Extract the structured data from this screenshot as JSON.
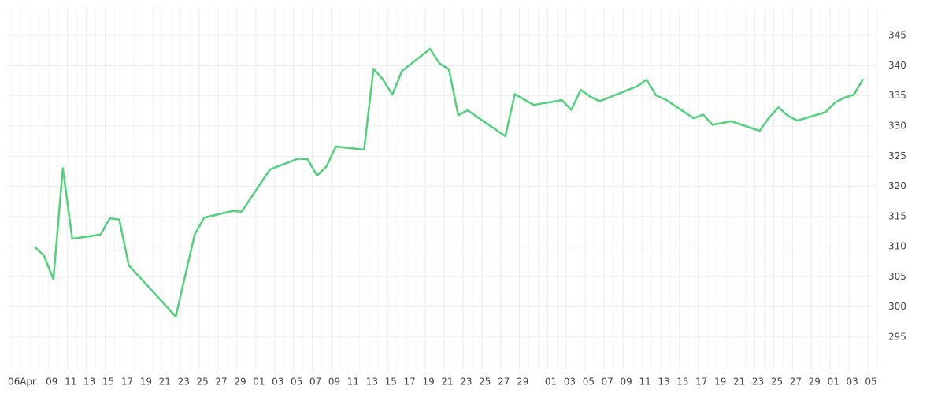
{
  "chart_data": {
    "type": "line",
    "x": [
      "04-07",
      "04-08",
      "04-09",
      "04-10",
      "04-11",
      "04-14",
      "04-15",
      "04-16",
      "04-17",
      "04-22",
      "04-24",
      "04-25",
      "04-28",
      "04-29",
      "05-02",
      "05-05",
      "05-06",
      "05-07",
      "05-08",
      "05-09",
      "05-12",
      "05-13",
      "05-14",
      "05-15",
      "05-16",
      "05-19",
      "05-20",
      "05-21",
      "05-22",
      "05-23",
      "05-27",
      "05-28",
      "05-30",
      "06-02",
      "06-03",
      "06-04",
      "06-05",
      "06-06",
      "06-10",
      "06-11",
      "06-12",
      "06-13",
      "06-16",
      "06-17",
      "06-18",
      "06-20",
      "06-23",
      "06-24",
      "06-25",
      "06-26",
      "06-27",
      "06-30",
      "07-01",
      "07-02",
      "07-03",
      "07-04"
    ],
    "series": [
      {
        "color": "#52d17c",
        "values": [
          310.0,
          308.5,
          304.6,
          323.0,
          311.3,
          312.0,
          314.7,
          314.5,
          306.9,
          298.4,
          312.0,
          314.8,
          315.9,
          315.8,
          322.8,
          324.6,
          324.5,
          321.8,
          323.3,
          326.6,
          326.1,
          339.5,
          337.7,
          335.2,
          339.1,
          342.8,
          340.4,
          339.4,
          331.8,
          332.6,
          328.3,
          335.3,
          333.5,
          334.3,
          332.7,
          336.0,
          334.9,
          334.1,
          336.6,
          337.7,
          335.1,
          334.4,
          331.3,
          331.9,
          330.2,
          330.8,
          329.2,
          331.4,
          333.1,
          331.7,
          330.9,
          332.3,
          333.9,
          334.7,
          335.2,
          337.8
        ]
      }
    ],
    "xlim": [
      "04-05",
      "07-06"
    ],
    "xticks": [
      {
        "value": "04-06",
        "label": "06Apr"
      },
      {
        "value": "04-09",
        "label": "09"
      },
      {
        "value": "04-11",
        "label": "11"
      },
      {
        "value": "04-13",
        "label": "13"
      },
      {
        "value": "04-15",
        "label": "15"
      },
      {
        "value": "04-17",
        "label": "17"
      },
      {
        "value": "04-19",
        "label": "19"
      },
      {
        "value": "04-21",
        "label": "21"
      },
      {
        "value": "04-23",
        "label": "23"
      },
      {
        "value": "04-25",
        "label": "25"
      },
      {
        "value": "04-27",
        "label": "27"
      },
      {
        "value": "04-29",
        "label": "29"
      },
      {
        "value": "05-01",
        "label": "01"
      },
      {
        "value": "05-03",
        "label": "03"
      },
      {
        "value": "05-05",
        "label": "05"
      },
      {
        "value": "05-07",
        "label": "07"
      },
      {
        "value": "05-09",
        "label": "09"
      },
      {
        "value": "05-11",
        "label": "11"
      },
      {
        "value": "05-13",
        "label": "13"
      },
      {
        "value": "05-15",
        "label": "15"
      },
      {
        "value": "05-17",
        "label": "17"
      },
      {
        "value": "05-19",
        "label": "19"
      },
      {
        "value": "05-21",
        "label": "21"
      },
      {
        "value": "05-23",
        "label": "23"
      },
      {
        "value": "05-25",
        "label": "25"
      },
      {
        "value": "05-27",
        "label": "27"
      },
      {
        "value": "05-29",
        "label": "29"
      },
      {
        "value": "06-01",
        "label": "01"
      },
      {
        "value": "06-03",
        "label": "03"
      },
      {
        "value": "06-05",
        "label": "05"
      },
      {
        "value": "06-07",
        "label": "07"
      },
      {
        "value": "06-09",
        "label": "09"
      },
      {
        "value": "06-11",
        "label": "11"
      },
      {
        "value": "06-13",
        "label": "13"
      },
      {
        "value": "06-15",
        "label": "15"
      },
      {
        "value": "06-17",
        "label": "17"
      },
      {
        "value": "06-19",
        "label": "19"
      },
      {
        "value": "06-21",
        "label": "21"
      },
      {
        "value": "06-23",
        "label": "23"
      },
      {
        "value": "06-25",
        "label": "25"
      },
      {
        "value": "06-27",
        "label": "27"
      },
      {
        "value": "06-29",
        "label": "29"
      },
      {
        "value": "07-01",
        "label": "01"
      },
      {
        "value": "07-03",
        "label": "03"
      },
      {
        "value": "07-05",
        "label": "05"
      }
    ],
    "ylim": [
      289.5,
      349.6
    ],
    "yticks": [
      295,
      300,
      305,
      310,
      315,
      320,
      325,
      330,
      335,
      340,
      345
    ],
    "grid": true
  }
}
